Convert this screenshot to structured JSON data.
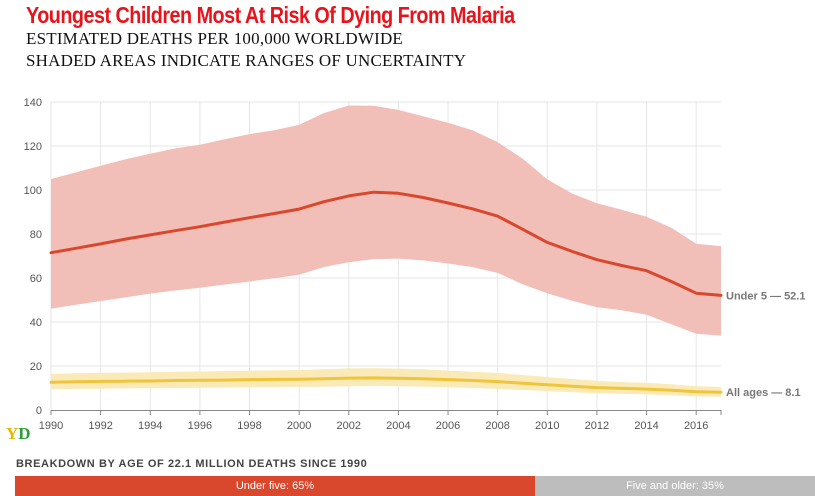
{
  "title": "Youngest Children Most At Risk Of Dying From Malaria",
  "subtitle_line1": "ESTIMATED DEATHS PER 100,000 WORLDWIDE",
  "subtitle_line2": "SHADED AREAS INDICATE RANGES OF UNCERTAINTY",
  "logo": {
    "part1": "Y",
    "part2": "D"
  },
  "colors": {
    "under5_line": "#d9472c",
    "under5_band": "#f2bfb8",
    "allages_line": "#f0c43c",
    "allages_band": "#faeab8",
    "grid": "#e6e6e6",
    "title": "#e8141b"
  },
  "chart_data": {
    "type": "line",
    "title": "Youngest Children Most At Risk Of Dying From Malaria",
    "xlim": [
      1990,
      2017
    ],
    "ylim": [
      0,
      140
    ],
    "x_ticks": [
      "1990",
      "1992",
      "1994",
      "1996",
      "1998",
      "2000",
      "2002",
      "2004",
      "2006",
      "2008",
      "2010",
      "2012",
      "2014",
      "2016"
    ],
    "y_ticks": [
      "0",
      "20",
      "40",
      "60",
      "80",
      "100",
      "120",
      "140"
    ],
    "grid": true,
    "x": [
      1990,
      1991,
      1992,
      1993,
      1994,
      1995,
      1996,
      1997,
      1998,
      1999,
      2000,
      2001,
      2002,
      2003,
      2004,
      2005,
      2006,
      2007,
      2008,
      2009,
      2010,
      2011,
      2012,
      2013,
      2014,
      2015,
      2016,
      2017
    ],
    "series": [
      {
        "name": "Under 5",
        "end_label": "Under 5 — 52.1",
        "values": [
          71.5,
          73.5,
          75.5,
          77.7,
          79.6,
          81.5,
          83.3,
          85.4,
          87.4,
          89.3,
          91.3,
          94.7,
          97.3,
          99.0,
          98.5,
          96.6,
          94.1,
          91.4,
          88.1,
          82.2,
          76.2,
          72.1,
          68.3,
          65.7,
          63.3,
          58.4,
          53.1,
          52.1
        ],
        "lower": [
          46.0,
          47.8,
          49.5,
          51.2,
          52.9,
          54.3,
          55.6,
          57.0,
          58.4,
          59.9,
          61.5,
          65.0,
          67.2,
          68.6,
          68.8,
          68.0,
          66.6,
          64.9,
          62.3,
          57.2,
          53.1,
          49.7,
          46.7,
          45.3,
          43.3,
          39.0,
          34.7,
          33.8
        ],
        "upper": [
          105.0,
          108.0,
          111.0,
          114.0,
          116.5,
          118.9,
          120.6,
          123.1,
          125.4,
          127.2,
          129.6,
          135.0,
          138.4,
          138.3,
          136.4,
          133.5,
          130.6,
          127.1,
          121.7,
          114.3,
          104.8,
          98.4,
          94.0,
          91.0,
          87.8,
          82.8,
          75.6,
          74.5
        ]
      },
      {
        "name": "All ages",
        "end_label": "All ages — 8.1",
        "values": [
          12.6,
          12.8,
          13.0,
          13.1,
          13.2,
          13.4,
          13.5,
          13.6,
          13.8,
          13.9,
          14.0,
          14.2,
          14.5,
          14.6,
          14.4,
          14.2,
          13.8,
          13.4,
          12.9,
          12.2,
          11.5,
          10.8,
          10.2,
          9.8,
          9.5,
          9.0,
          8.3,
          8.1
        ],
        "lower": [
          9.4,
          9.6,
          9.7,
          9.8,
          9.9,
          10.0,
          10.1,
          10.2,
          10.3,
          10.4,
          10.5,
          10.6,
          10.8,
          10.9,
          10.8,
          10.6,
          10.3,
          10.0,
          9.6,
          9.1,
          8.6,
          8.1,
          7.6,
          7.3,
          7.1,
          6.7,
          6.2,
          6.0
        ],
        "upper": [
          16.4,
          16.7,
          16.9,
          17.0,
          17.2,
          17.4,
          17.5,
          17.7,
          17.9,
          18.0,
          18.2,
          18.5,
          18.9,
          19.0,
          18.8,
          18.5,
          17.9,
          17.4,
          16.8,
          15.9,
          15.0,
          14.1,
          13.3,
          12.7,
          12.4,
          11.7,
          10.8,
          10.5
        ]
      }
    ]
  },
  "breakdown": {
    "title": "BREAKDOWN BY AGE OF 22.1 MILLION DEATHS SINCE 1990",
    "segments": [
      {
        "label": "Under five: 65%",
        "share": 65
      },
      {
        "label": "Five and older: 35%",
        "share": 35
      }
    ]
  }
}
